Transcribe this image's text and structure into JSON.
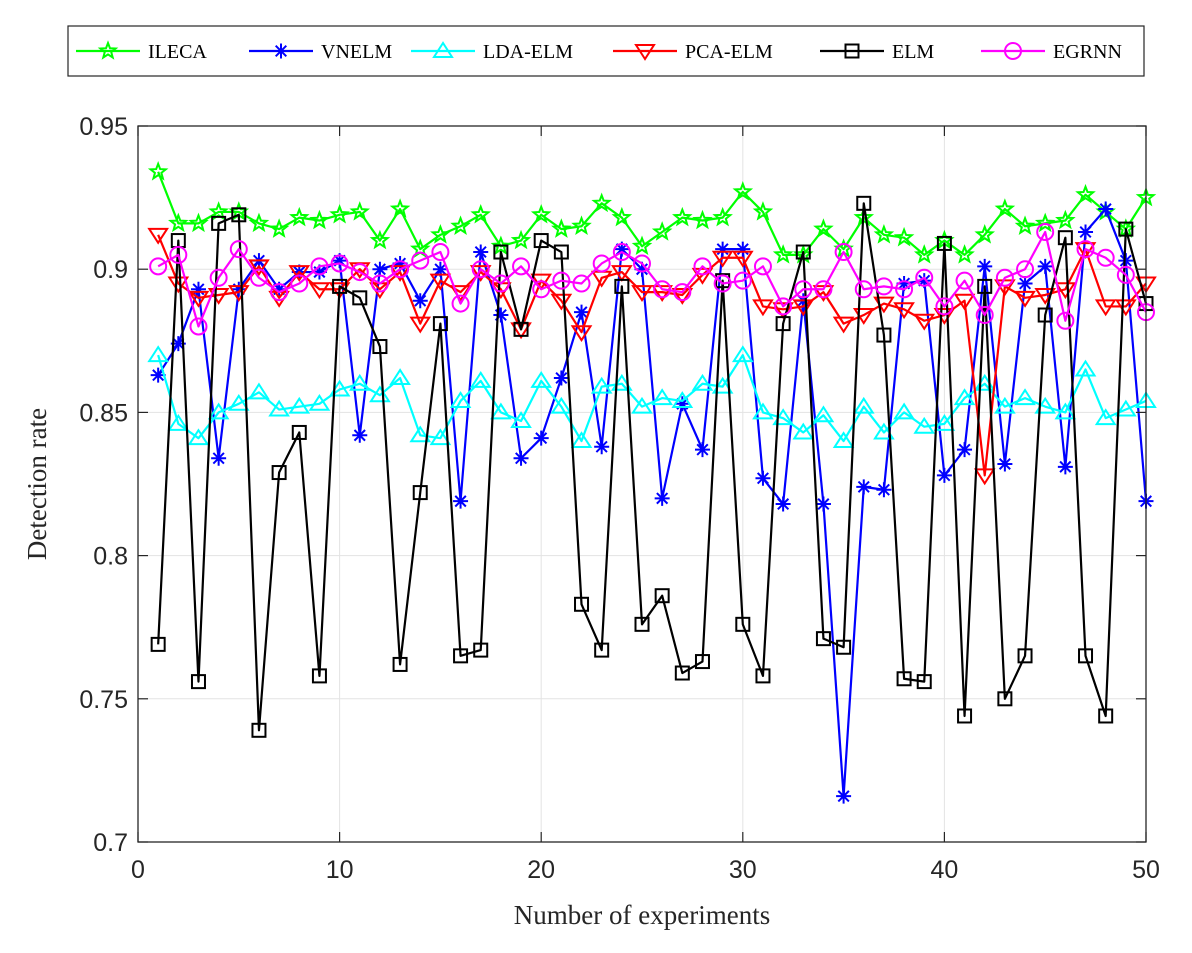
{
  "chart_data": {
    "type": "line",
    "title": "",
    "xlabel": "Number of experiments",
    "ylabel": "Detection rate",
    "xlim": [
      0,
      50
    ],
    "ylim": [
      0.7,
      0.95
    ],
    "xticks": [
      0,
      10,
      20,
      30,
      40,
      50
    ],
    "yticks": [
      0.7,
      0.75,
      0.8,
      0.85,
      0.9,
      0.95
    ],
    "xtick_labels": [
      "0",
      "10",
      "20",
      "30",
      "40",
      "50"
    ],
    "ytick_labels": [
      "0.7",
      "0.75",
      "0.8",
      "0.85",
      "0.9",
      "0.95"
    ],
    "grid": true,
    "legend_position": "top, outside, horizontal",
    "x": [
      1,
      2,
      3,
      4,
      5,
      6,
      7,
      8,
      9,
      10,
      11,
      12,
      13,
      14,
      15,
      16,
      17,
      18,
      19,
      20,
      21,
      22,
      23,
      24,
      25,
      26,
      27,
      28,
      29,
      30,
      31,
      32,
      33,
      34,
      35,
      36,
      37,
      38,
      39,
      40,
      41,
      42,
      43,
      44,
      45,
      46,
      47,
      48,
      49,
      50
    ],
    "series": [
      {
        "name": "ILECA",
        "color": "#00ff00",
        "marker": "star",
        "values": [
          0.934,
          0.916,
          0.916,
          0.92,
          0.92,
          0.916,
          0.914,
          0.918,
          0.917,
          0.919,
          0.92,
          0.91,
          0.921,
          0.907,
          0.912,
          0.915,
          0.919,
          0.908,
          0.91,
          0.919,
          0.914,
          0.915,
          0.923,
          0.918,
          0.908,
          0.913,
          0.918,
          0.917,
          0.918,
          0.927,
          0.92,
          0.905,
          0.905,
          0.914,
          0.907,
          0.918,
          0.912,
          0.911,
          0.905,
          0.91,
          0.905,
          0.912,
          0.921,
          0.915,
          0.916,
          0.917,
          0.926,
          0.92,
          0.914,
          0.925
        ]
      },
      {
        "name": "VNELM",
        "color": "#0000ff",
        "marker": "asterisk",
        "values": [
          0.863,
          0.874,
          0.893,
          0.834,
          0.893,
          0.903,
          0.893,
          0.899,
          0.899,
          0.903,
          0.842,
          0.9,
          0.902,
          0.889,
          0.9,
          0.819,
          0.906,
          0.884,
          0.834,
          0.841,
          0.862,
          0.885,
          0.838,
          0.907,
          0.9,
          0.82,
          0.853,
          0.837,
          0.907,
          0.907,
          0.827,
          0.818,
          0.889,
          0.818,
          0.716,
          0.824,
          0.823,
          0.895,
          0.896,
          0.828,
          0.837,
          0.901,
          0.832,
          0.895,
          0.901,
          0.831,
          0.913,
          0.921,
          0.903,
          0.819
        ]
      },
      {
        "name": "LDA-ELM",
        "color": "#00ffff",
        "marker": "triangle-up",
        "values": [
          0.87,
          0.846,
          0.841,
          0.85,
          0.853,
          0.857,
          0.851,
          0.852,
          0.853,
          0.858,
          0.86,
          0.856,
          0.862,
          0.842,
          0.841,
          0.854,
          0.861,
          0.85,
          0.847,
          0.861,
          0.852,
          0.84,
          0.859,
          0.86,
          0.852,
          0.855,
          0.854,
          0.86,
          0.859,
          0.87,
          0.85,
          0.848,
          0.843,
          0.849,
          0.84,
          0.852,
          0.843,
          0.85,
          0.845,
          0.846,
          0.855,
          0.86,
          0.852,
          0.855,
          0.852,
          0.85,
          0.865,
          0.848,
          0.851,
          0.854
        ]
      },
      {
        "name": "PCA-ELM",
        "color": "#ff0000",
        "marker": "triangle-down",
        "values": [
          0.912,
          0.895,
          0.89,
          0.891,
          0.892,
          0.901,
          0.89,
          0.899,
          0.893,
          0.893,
          0.9,
          0.893,
          0.899,
          0.881,
          0.896,
          0.892,
          0.899,
          0.893,
          0.879,
          0.896,
          0.889,
          0.878,
          0.897,
          0.899,
          0.892,
          0.892,
          0.891,
          0.898,
          0.904,
          0.904,
          0.887,
          0.886,
          0.887,
          0.892,
          0.881,
          0.884,
          0.888,
          0.886,
          0.882,
          0.884,
          0.889,
          0.828,
          0.894,
          0.89,
          0.891,
          0.893,
          0.907,
          0.887,
          0.887,
          0.895
        ]
      },
      {
        "name": "ELM",
        "color": "#000000",
        "marker": "square",
        "values": [
          0.769,
          0.91,
          0.756,
          0.916,
          0.919,
          0.739,
          0.829,
          0.843,
          0.758,
          0.894,
          0.89,
          0.873,
          0.762,
          0.822,
          0.881,
          0.765,
          0.767,
          0.906,
          0.879,
          0.91,
          0.906,
          0.783,
          0.767,
          0.894,
          0.776,
          0.786,
          0.759,
          0.763,
          0.896,
          0.776,
          0.758,
          0.881,
          0.906,
          0.771,
          0.768,
          0.923,
          0.877,
          0.757,
          0.756,
          0.909,
          0.744,
          0.894,
          0.75,
          0.765,
          0.884,
          0.911,
          0.765,
          0.744,
          0.914,
          0.888
        ]
      },
      {
        "name": "EGRNN",
        "color": "#ff00ff",
        "marker": "circle",
        "values": [
          0.901,
          0.905,
          0.88,
          0.897,
          0.907,
          0.897,
          0.892,
          0.895,
          0.901,
          0.902,
          0.899,
          0.895,
          0.9,
          0.903,
          0.906,
          0.888,
          0.9,
          0.895,
          0.901,
          0.893,
          0.896,
          0.895,
          0.902,
          0.906,
          0.902,
          0.893,
          0.892,
          0.901,
          0.895,
          0.896,
          0.901,
          0.887,
          0.893,
          0.893,
          0.906,
          0.893,
          0.894,
          0.893,
          0.897,
          0.887,
          0.896,
          0.884,
          0.897,
          0.9,
          0.913,
          0.882,
          0.907,
          0.904,
          0.898,
          0.885
        ]
      }
    ]
  }
}
